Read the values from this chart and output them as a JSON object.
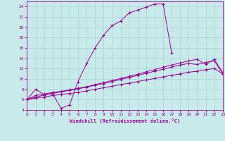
{
  "xlabel": "Windchill (Refroidissement éolien,°C)",
  "background_color": "#c8eaea",
  "grid_color": "#aad4d4",
  "line_color": "#990099",
  "xlim": [
    0,
    23
  ],
  "ylim": [
    4,
    25
  ],
  "x_ticks": [
    0,
    1,
    2,
    3,
    4,
    5,
    6,
    7,
    8,
    9,
    10,
    11,
    12,
    13,
    14,
    15,
    16,
    17,
    18,
    19,
    20,
    21,
    22,
    23
  ],
  "y_ticks": [
    4,
    6,
    8,
    10,
    12,
    14,
    16,
    18,
    20,
    22,
    24
  ],
  "line1_x": [
    0,
    1,
    2,
    3,
    4,
    5,
    6,
    7,
    8,
    9,
    10,
    11,
    12,
    13,
    14,
    15,
    16,
    17
  ],
  "line1_y": [
    6.0,
    8.0,
    7.0,
    7.2,
    4.3,
    5.0,
    9.5,
    13.0,
    16.0,
    18.5,
    20.3,
    21.2,
    22.8,
    23.3,
    23.9,
    24.5,
    24.5,
    15.0
  ],
  "line2_x": [
    0,
    1,
    2,
    3,
    4,
    5,
    6,
    7,
    8,
    9,
    10,
    11,
    12,
    13,
    14,
    15,
    16,
    17,
    18,
    19,
    20,
    21,
    22,
    23
  ],
  "line2_y": [
    6.0,
    6.3,
    6.5,
    6.8,
    7.0,
    7.2,
    7.4,
    7.7,
    8.0,
    8.3,
    8.6,
    8.9,
    9.2,
    9.5,
    9.8,
    10.1,
    10.4,
    10.7,
    11.0,
    11.3,
    11.5,
    11.8,
    12.0,
    11.0
  ],
  "line3_x": [
    0,
    1,
    2,
    3,
    4,
    5,
    6,
    7,
    8,
    9,
    10,
    11,
    12,
    13,
    14,
    15,
    16,
    17,
    18,
    19,
    20,
    21,
    22,
    23
  ],
  "line3_y": [
    6.0,
    6.5,
    6.9,
    7.2,
    7.5,
    7.8,
    8.1,
    8.4,
    8.8,
    9.1,
    9.5,
    9.9,
    10.3,
    10.7,
    11.1,
    11.5,
    11.9,
    12.3,
    12.7,
    13.0,
    12.8,
    13.2,
    13.5,
    11.0
  ],
  "line4_x": [
    0,
    1,
    2,
    3,
    4,
    5,
    6,
    7,
    8,
    9,
    10,
    11,
    12,
    13,
    14,
    15,
    16,
    17,
    18,
    19,
    20,
    21,
    22,
    23
  ],
  "line4_y": [
    6.0,
    6.8,
    7.1,
    7.4,
    7.6,
    7.9,
    8.2,
    8.5,
    8.9,
    9.3,
    9.7,
    10.1,
    10.5,
    10.9,
    11.4,
    11.8,
    12.3,
    12.7,
    13.1,
    13.5,
    13.8,
    12.8,
    13.8,
    11.2
  ]
}
